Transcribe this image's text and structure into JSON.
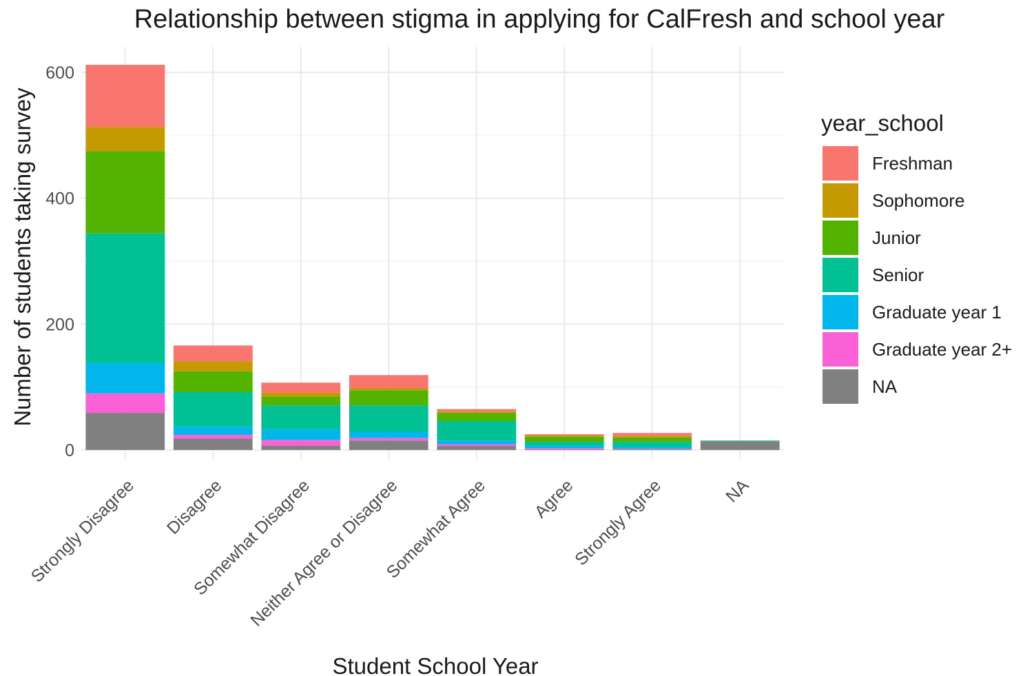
{
  "chart_data": {
    "type": "bar",
    "stacked": true,
    "title": "Relationship between stigma in applying for CalFresh and school year",
    "xlabel": "Student School Year",
    "ylabel": "Number of students taking survey",
    "ylim": [
      0,
      640
    ],
    "yticks": [
      0,
      200,
      400,
      600
    ],
    "grid": true,
    "legend": {
      "title": "year_school",
      "position": "right"
    },
    "categories": [
      "Strongly Disagree",
      "Disagree",
      "Somewhat Disagree",
      "Neither Agree or Disagree",
      "Somewhat Agree",
      "Agree",
      "Strongly Agree",
      "NA"
    ],
    "series": [
      {
        "name": "Freshman",
        "color": "#F8766D",
        "values": [
          99,
          25,
          16,
          21,
          4,
          2,
          5,
          0
        ]
      },
      {
        "name": "Sophomore",
        "color": "#C49A00",
        "values": [
          38,
          16,
          6,
          3,
          2,
          2,
          2,
          0
        ]
      },
      {
        "name": "Junior",
        "color": "#53B400",
        "values": [
          131,
          33,
          14,
          24,
          13,
          8,
          7,
          0
        ]
      },
      {
        "name": "Senior",
        "color": "#00C094",
        "values": [
          206,
          55,
          38,
          42,
          31,
          6,
          8,
          1
        ]
      },
      {
        "name": "Graduate year 1",
        "color": "#00B6EB",
        "values": [
          48,
          13,
          17,
          10,
          6,
          4,
          3,
          0
        ]
      },
      {
        "name": "Graduate year 2+",
        "color": "#FB61D7",
        "values": [
          31,
          6,
          9,
          4,
          3,
          2,
          1,
          0
        ]
      },
      {
        "name": "NA",
        "color": "#808080",
        "values": [
          59,
          18,
          7,
          15,
          6,
          1,
          1,
          14
        ]
      }
    ]
  }
}
